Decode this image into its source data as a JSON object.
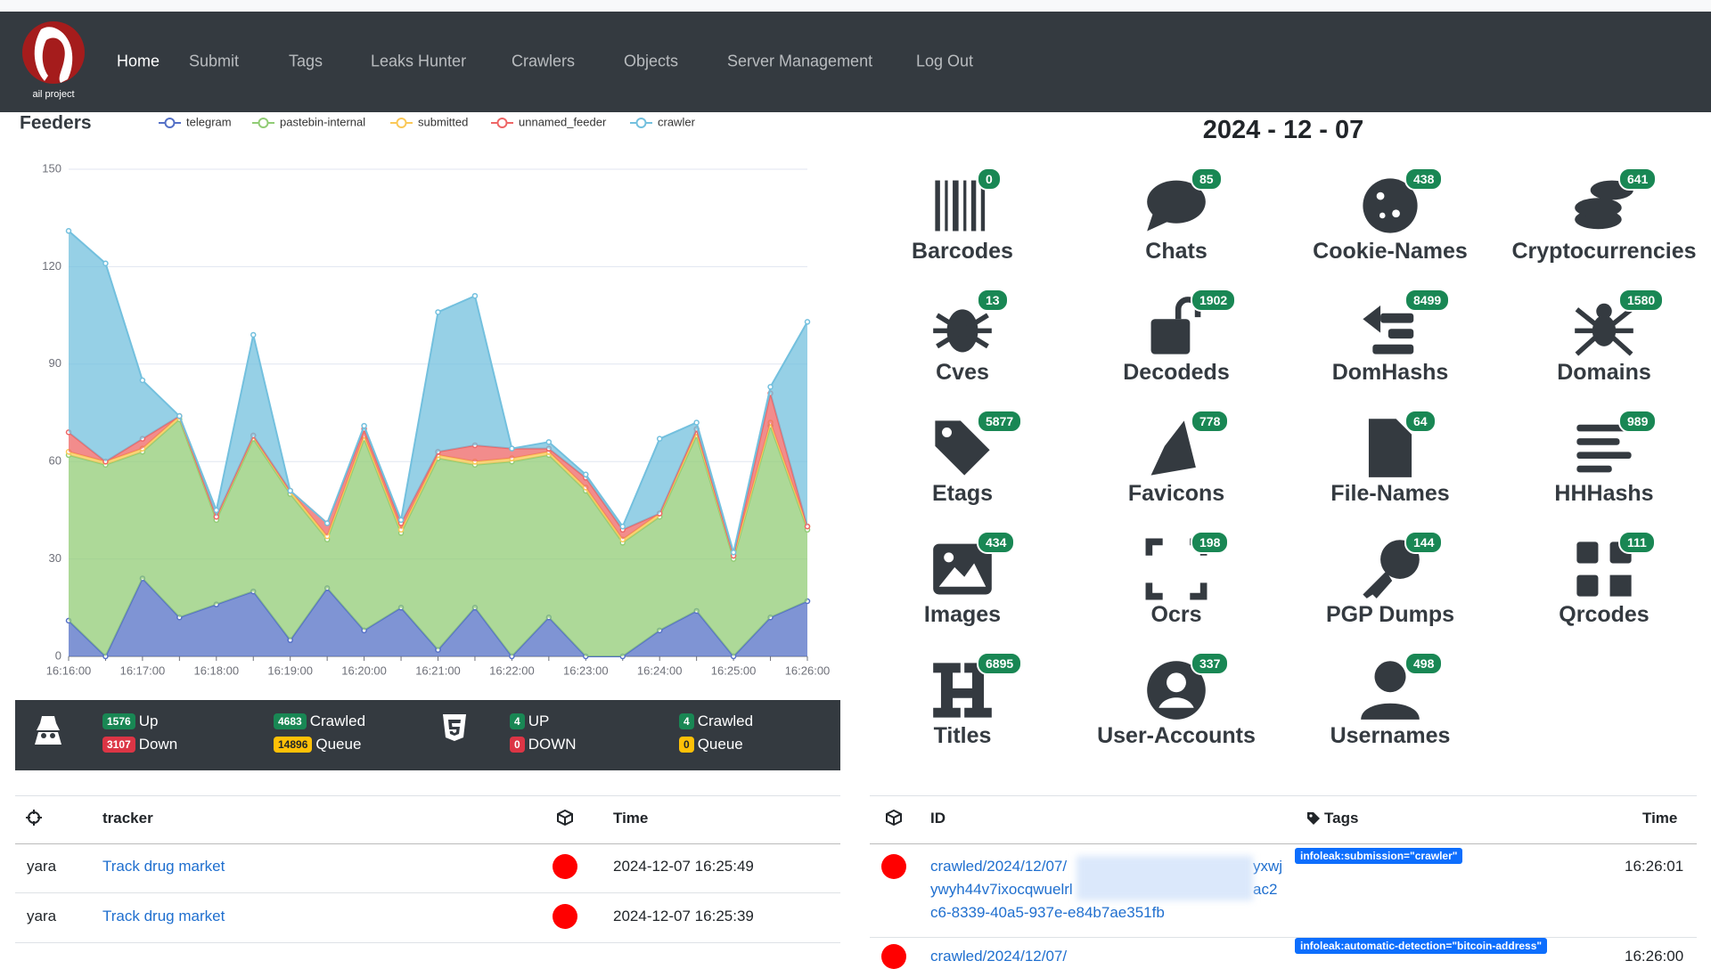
{
  "navbar": {
    "logo_text": "ail project",
    "items": [
      "Home",
      "Submit",
      "Tags",
      "Leaks Hunter",
      "Crawlers",
      "Objects",
      "Server Management",
      "Log Out"
    ]
  },
  "chart_data": {
    "type": "area",
    "stacked": true,
    "title": "Feeders",
    "categories": [
      "16:16:00",
      null,
      "16:17:00",
      null,
      "16:18:00",
      null,
      "16:19:00",
      null,
      "16:20:00",
      null,
      "16:21:00",
      null,
      "16:22:00",
      null,
      "16:23:00",
      null,
      "16:24:00",
      null,
      "16:25:00",
      null,
      "16:26:00"
    ],
    "series": [
      {
        "name": "telegram",
        "color": "#5470c6",
        "values": [
          11,
          0,
          24,
          12,
          16,
          20,
          5,
          21,
          8,
          15,
          2,
          15,
          0,
          12,
          0,
          0,
          8,
          14,
          0,
          12,
          17
        ]
      },
      {
        "name": "pastebin-internal",
        "color": "#91cc75",
        "values": [
          51,
          59,
          39,
          61,
          26,
          47,
          45,
          15,
          59,
          23,
          59,
          44,
          60,
          50,
          51,
          35,
          35,
          54,
          30,
          59,
          22
        ]
      },
      {
        "name": "submitted",
        "color": "#fac858",
        "values": [
          1,
          1,
          1,
          1,
          1,
          1,
          1,
          1,
          1,
          1,
          1,
          1,
          1,
          1,
          1,
          1,
          1,
          1,
          1,
          1,
          1
        ]
      },
      {
        "name": "unnamed_feeder",
        "color": "#ee6666",
        "values": [
          6,
          0,
          3,
          0,
          0,
          0,
          0,
          4,
          2,
          2,
          1,
          5,
          3,
          1,
          3,
          3,
          0,
          1,
          0,
          9,
          0
        ]
      },
      {
        "name": "crawler",
        "color": "#73c0de",
        "values": [
          62,
          61,
          18,
          0,
          2,
          31,
          0,
          0,
          1,
          1,
          43,
          46,
          0,
          2,
          1,
          1,
          23,
          2,
          1,
          2,
          63
        ]
      }
    ],
    "ylim": [
      0,
      150
    ],
    "yticks": [
      0,
      30,
      60,
      90,
      120,
      150
    ],
    "grid": true,
    "legend": "top"
  },
  "crawler_stats": {
    "onion": [
      {
        "count": 1576,
        "label": "Up"
      },
      {
        "count": 3107,
        "label": "Down"
      },
      {
        "count": 4683,
        "label": "Crawled"
      },
      {
        "count": 14896,
        "label": "Queue"
      }
    ],
    "web": [
      {
        "count": 4,
        "label": "UP"
      },
      {
        "count": 0,
        "label": "DOWN"
      },
      {
        "count": 4,
        "label": "Crawled"
      },
      {
        "count": 0,
        "label": "Queue"
      }
    ]
  },
  "date": "2024 - 12 - 07",
  "objects": [
    {
      "name": "Barcodes",
      "count": 0
    },
    {
      "name": "Chats",
      "count": 85
    },
    {
      "name": "Cookie-Names",
      "count": 438
    },
    {
      "name": "Cryptocurrencies",
      "count": 641
    },
    {
      "name": "Cves",
      "count": 13
    },
    {
      "name": "Decodeds",
      "count": 1902
    },
    {
      "name": "DomHashs",
      "count": 8499
    },
    {
      "name": "Domains",
      "count": 1580
    },
    {
      "name": "Etags",
      "count": 5877
    },
    {
      "name": "Favicons",
      "count": 778
    },
    {
      "name": "File-Names",
      "count": 64
    },
    {
      "name": "HHHashs",
      "count": 989
    },
    {
      "name": "Images",
      "count": 434
    },
    {
      "name": "Ocrs",
      "count": 198
    },
    {
      "name": "PGP Dumps",
      "count": 144
    },
    {
      "name": "Qrcodes",
      "count": 111
    },
    {
      "name": "Titles",
      "count": 6895
    },
    {
      "name": "User-Accounts",
      "count": 337
    },
    {
      "name": "Usernames",
      "count": 498
    }
  ],
  "trackers_table": {
    "header": [
      "tracker",
      "Time"
    ],
    "rows": [
      [
        "yara",
        "Track drug market",
        "2024-12-07 16:25:49"
      ],
      [
        "yara",
        "Track drug market",
        "2024-12-07 16:25:39"
      ]
    ]
  },
  "objects_table": {
    "header": [
      "ID",
      "Tags",
      "Time"
    ],
    "rows": [
      {
        "id_lines": [
          "crawled/2024/12/07/",
          "ywyh44v7ixocqwuelrl",
          "c6-8339-40a5-937e-e84b7ae351fb"
        ],
        "id_tails": [
          "yxwj",
          "ac2"
        ],
        "tag": "infoleak:submission=\"crawler\"",
        "time": "16:26:01"
      },
      {
        "id_lines": [
          "crawled/2024/12/07/"
        ],
        "id_tails": [],
        "tag": "infoleak:automatic-detection=\"bitcoin-address\"",
        "time": "16:26:00"
      }
    ]
  }
}
